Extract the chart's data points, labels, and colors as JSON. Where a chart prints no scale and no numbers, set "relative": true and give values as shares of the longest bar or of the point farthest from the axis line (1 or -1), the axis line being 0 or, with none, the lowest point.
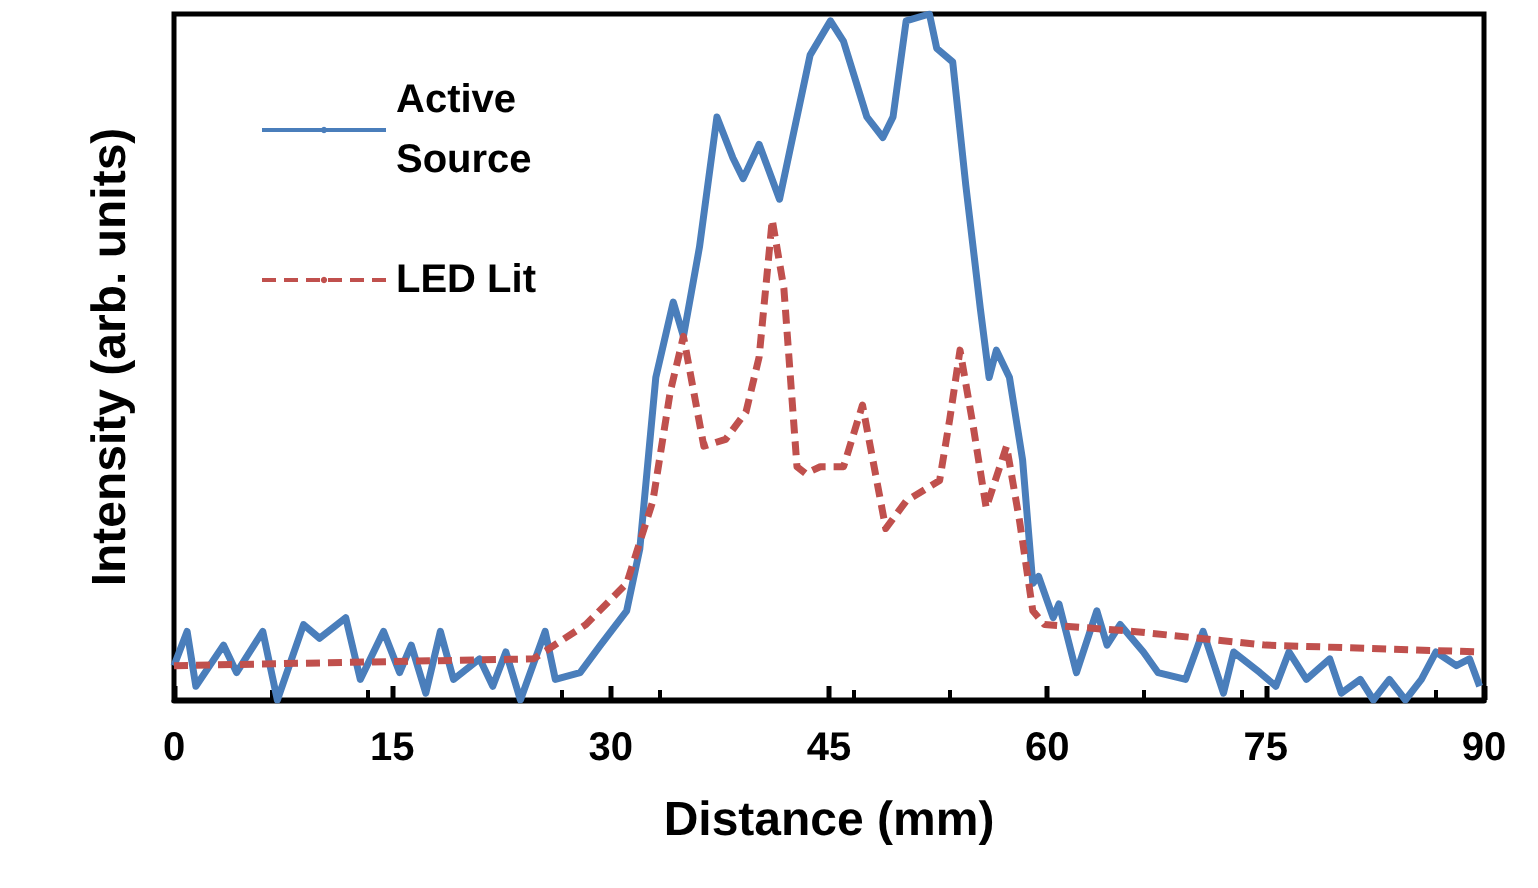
{
  "chart_data": {
    "type": "line",
    "relative": true,
    "xlabel": "Distance (mm)",
    "ylabel": "Intensity (arb. units)",
    "xlim": [
      0,
      90
    ],
    "xticks": [
      0,
      15,
      30,
      45,
      60,
      75,
      90
    ],
    "grid": false,
    "legend": "top left",
    "marker": "none",
    "series": [
      {
        "name": "Active Source",
        "color": "#4a7ebb",
        "line_style": "solid",
        "x": [
          0,
          0.9,
          1.5,
          3.4,
          4.3,
          6.1,
          7.1,
          8.9,
          10,
          11.8,
          12.8,
          14.4,
          15.5,
          16.3,
          17.3,
          18.3,
          19.2,
          21,
          21.9,
          22.8,
          23.8,
          25.5,
          26.2,
          27.9,
          29.3,
          31.1,
          32,
          33.1,
          34.3,
          35,
          36.1,
          37.3,
          38.4,
          39.1,
          40.2,
          41.6,
          42.3,
          43,
          43.7,
          45.1,
          46,
          47.6,
          48.7,
          49.4,
          50.3,
          51.9,
          52.4,
          53.5,
          54.4,
          55.4,
          56,
          56.5,
          57.4,
          58.3,
          59,
          59.4,
          60.4,
          60.8,
          62,
          63.4,
          64.1,
          65,
          66.6,
          67.6,
          69.5,
          70.7,
          72.1,
          72.8,
          74.6,
          75.7,
          76.6,
          77.8,
          79.4,
          80.2,
          81.5,
          82.4,
          83.5,
          84.6,
          85.7,
          86.7,
          88.1,
          89,
          89.7
        ],
        "values": [
          0.05,
          0.1,
          0.02,
          0.08,
          0.04,
          0.1,
          0,
          0.11,
          0.09,
          0.12,
          0.03,
          0.1,
          0.04,
          0.08,
          0.01,
          0.1,
          0.03,
          0.06,
          0.02,
          0.07,
          0,
          0.1,
          0.03,
          0.04,
          0.08,
          0.13,
          0.22,
          0.47,
          0.58,
          0.53,
          0.66,
          0.85,
          0.79,
          0.76,
          0.81,
          0.73,
          0.8,
          0.87,
          0.94,
          0.99,
          0.96,
          0.85,
          0.82,
          0.85,
          0.99,
          1,
          0.95,
          0.93,
          0.75,
          0.57,
          0.47,
          0.51,
          0.47,
          0.35,
          0.17,
          0.18,
          0.12,
          0.14,
          0.04,
          0.13,
          0.08,
          0.11,
          0.07,
          0.04,
          0.03,
          0.1,
          0.01,
          0.07,
          0.04,
          0.02,
          0.07,
          0.03,
          0.06,
          0.01,
          0.03,
          0,
          0.03,
          0,
          0.03,
          0.07,
          0.05,
          0.06,
          0.02
        ]
      },
      {
        "name": "LED Lit",
        "color": "#c0504d",
        "line_style": "dashed",
        "x": [
          0,
          24.7,
          28.3,
          31.1,
          32.9,
          34.1,
          35,
          36.4,
          37.9,
          39.3,
          40.2,
          41.1,
          41.9,
          42.8,
          43.4,
          44.4,
          46,
          47.3,
          48.9,
          50.3,
          52.6,
          53.3,
          54,
          54.9,
          55.8,
          57.2,
          58.1,
          59,
          59.8,
          65.9,
          75,
          89.7
        ],
        "values": [
          0.05,
          0.06,
          0.11,
          0.17,
          0.29,
          0.45,
          0.53,
          0.37,
          0.38,
          0.42,
          0.5,
          0.7,
          0.6,
          0.34,
          0.33,
          0.34,
          0.34,
          0.43,
          0.25,
          0.29,
          0.32,
          0.41,
          0.51,
          0.4,
          0.28,
          0.37,
          0.26,
          0.13,
          0.11,
          0.1,
          0.08,
          0.07
        ]
      }
    ]
  }
}
